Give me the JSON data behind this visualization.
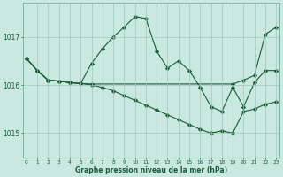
{
  "title": "Graphe pression niveau de la mer (hPa)",
  "bg_color": "#c8e8e0",
  "line_color": "#1a5c35",
  "grid_color": "#a0c8bc",
  "label_color": "#1a5c35",
  "ylim": [
    1014.5,
    1017.7
  ],
  "yticks": [
    1015,
    1016,
    1017
  ],
  "xlim": [
    -0.3,
    23.3
  ],
  "figsize": [
    3.2,
    2.0
  ],
  "dpi": 100,
  "series1_x": [
    0,
    1,
    2,
    3,
    4,
    5,
    6,
    19,
    20,
    21,
    22,
    23
  ],
  "series1_y": [
    1016.55,
    1016.3,
    1016.1,
    1016.08,
    1016.05,
    1016.03,
    1016.02,
    1016.02,
    1016.1,
    1016.2,
    1017.05,
    1017.2
  ],
  "series2_x": [
    0,
    1,
    2,
    3,
    4,
    5,
    6,
    7,
    8,
    9,
    10,
    11,
    12,
    13,
    14,
    15,
    16,
    17,
    18,
    19,
    20,
    21,
    22,
    23
  ],
  "series2_y": [
    1016.55,
    1016.3,
    1016.1,
    1016.08,
    1016.05,
    1016.03,
    1016.45,
    1016.75,
    1017.0,
    1017.2,
    1017.42,
    1017.38,
    1016.7,
    1016.35,
    1016.5,
    1016.3,
    1015.95,
    1015.55,
    1015.45,
    1015.95,
    1015.55,
    1016.05,
    1016.3,
    1016.3
  ],
  "series3_x": [
    0,
    1,
    2,
    3,
    4,
    5,
    6,
    7,
    8,
    9,
    10,
    11,
    12,
    13,
    14,
    15,
    16,
    17,
    18,
    19,
    20,
    21,
    22,
    23
  ],
  "series3_y": [
    1016.55,
    1016.3,
    1016.1,
    1016.08,
    1016.05,
    1016.03,
    1016.0,
    1015.95,
    1015.88,
    1015.78,
    1015.68,
    1015.58,
    1015.48,
    1015.38,
    1015.28,
    1015.18,
    1015.08,
    1015.0,
    1015.05,
    1015.0,
    1015.45,
    1015.5,
    1015.6,
    1015.65
  ]
}
